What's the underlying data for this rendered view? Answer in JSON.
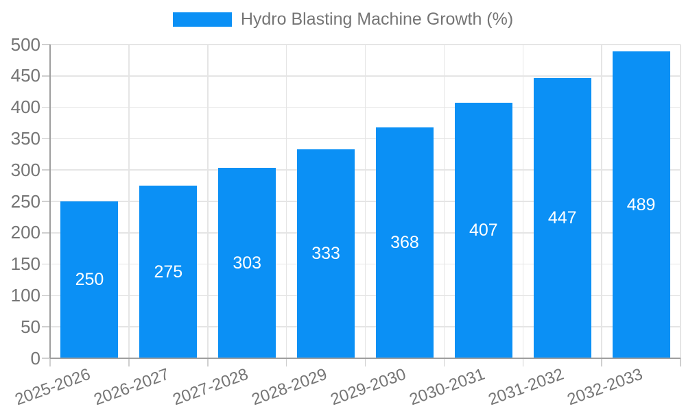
{
  "chart_data": {
    "type": "bar",
    "title": "Hydro Blasting Machine Growth (%)",
    "legend_position": "top",
    "categories": [
      "2025-2026",
      "2026-2027",
      "2027-2028",
      "2028-2029",
      "2029-2030",
      "2030-2031",
      "2031-2032",
      "2032-2033"
    ],
    "values": [
      250,
      275,
      303,
      333,
      368,
      407,
      447,
      489
    ],
    "yticks": [
      0,
      50,
      100,
      150,
      200,
      250,
      300,
      350,
      400,
      450,
      500
    ],
    "ylim": [
      0,
      500
    ],
    "grid": true,
    "xlabel": "",
    "ylabel": "",
    "colors": {
      "bar": "#0b90f5",
      "value_label": "#ffffff",
      "text": "#757575",
      "grid": "#e5e5e5",
      "axis": "#9e9e9e",
      "tick": "#cfcfcf"
    }
  }
}
